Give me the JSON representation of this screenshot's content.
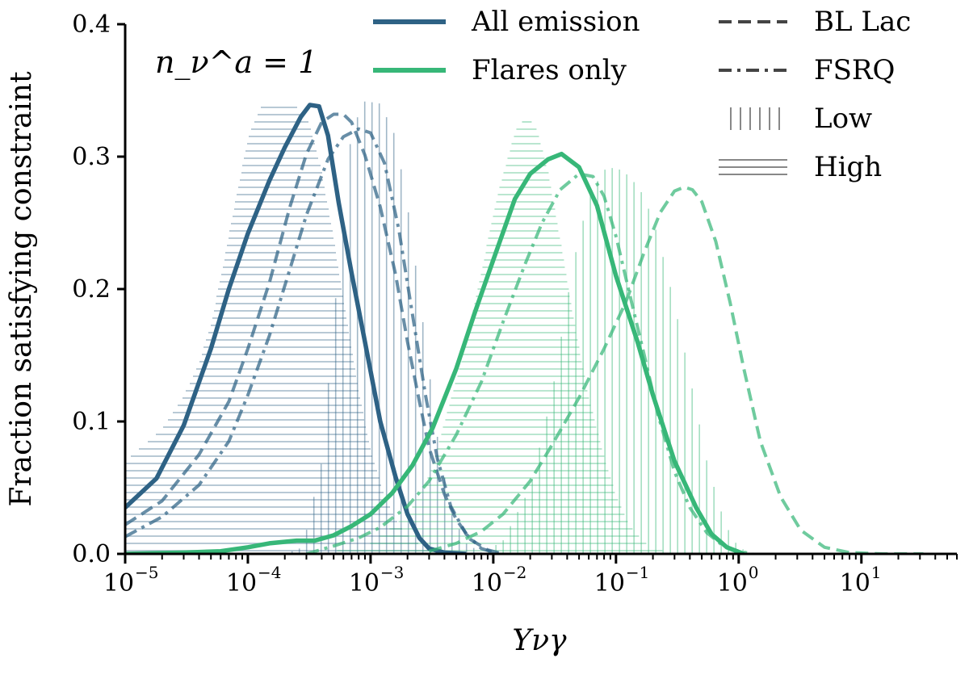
{
  "chart_data": {
    "type": "line",
    "x_scale": "log",
    "xlim": [
      1e-05,
      60
    ],
    "ylim": [
      0.0,
      0.4
    ],
    "xlabel": "Yνγ",
    "ylabel": "Fraction satisfying constraint",
    "annotation": "n_ν^a = 1",
    "x_ticks": [
      {
        "base": "10",
        "exp": "−5",
        "value": 1e-05
      },
      {
        "base": "10",
        "exp": "−4",
        "value": 0.0001
      },
      {
        "base": "10",
        "exp": "−3",
        "value": 0.001
      },
      {
        "base": "10",
        "exp": "−2",
        "value": 0.01
      },
      {
        "base": "10",
        "exp": "−1",
        "value": 0.1
      },
      {
        "base": "10",
        "exp": "0",
        "value": 1
      },
      {
        "base": "10",
        "exp": "1",
        "value": 10
      }
    ],
    "y_ticks": [
      "0.0",
      "0.1",
      "0.2",
      "0.3",
      "0.4"
    ],
    "y_tick_values": [
      0.0,
      0.1,
      0.2,
      0.3,
      0.4
    ],
    "colors": {
      "all": "#2e6285",
      "flares": "#37b778"
    },
    "legend": {
      "col1": [
        {
          "label": "All emission",
          "style": "solid",
          "color": "#2e6285"
        },
        {
          "label": "Flares only",
          "style": "solid",
          "color": "#37b778"
        }
      ],
      "col2": [
        {
          "label": "BL Lac",
          "style": "dashed"
        },
        {
          "label": "FSRQ",
          "style": "dashdot"
        },
        {
          "label": "Low",
          "style": "vertical-hatch"
        },
        {
          "label": "High",
          "style": "horizontal-hatch"
        }
      ]
    },
    "series": [
      {
        "name": "All emission",
        "group": "all",
        "style": "solid",
        "x": [
          1e-05,
          1.8e-05,
          3e-05,
          5e-05,
          7e-05,
          0.0001,
          0.00015,
          0.0002,
          0.00027,
          0.00032,
          0.00038,
          0.00045,
          0.00055,
          0.0007,
          0.0009,
          0.0012,
          0.0016,
          0.002,
          0.0025,
          0.003,
          0.004,
          0.006
        ],
        "y": [
          0.035,
          0.057,
          0.097,
          0.155,
          0.2,
          0.242,
          0.282,
          0.307,
          0.33,
          0.339,
          0.338,
          0.316,
          0.265,
          0.212,
          0.16,
          0.1,
          0.058,
          0.03,
          0.012,
          0.004,
          0.001,
          0.0
        ]
      },
      {
        "name": "All emission BL Lac",
        "group": "all",
        "style": "dashed",
        "x": [
          1e-05,
          2e-05,
          4e-05,
          7e-05,
          0.0001,
          0.00015,
          0.00022,
          0.0003,
          0.0004,
          0.0005,
          0.0006,
          0.0007,
          0.0009,
          0.0012,
          0.0016,
          0.002,
          0.0025,
          0.003,
          0.004,
          0.005,
          0.0065,
          0.009,
          0.012
        ],
        "y": [
          0.022,
          0.04,
          0.075,
          0.115,
          0.155,
          0.205,
          0.262,
          0.302,
          0.326,
          0.332,
          0.332,
          0.326,
          0.301,
          0.262,
          0.211,
          0.16,
          0.115,
          0.08,
          0.045,
          0.026,
          0.011,
          0.003,
          0.0
        ]
      },
      {
        "name": "All emission FSRQ",
        "group": "all",
        "style": "dashdot",
        "x": [
          1e-05,
          2e-05,
          4e-05,
          7e-05,
          0.0001,
          0.00015,
          0.00022,
          0.0003,
          0.00045,
          0.0006,
          0.0008,
          0.001,
          0.0013,
          0.0017,
          0.0022,
          0.0028,
          0.0035,
          0.0045,
          0.006,
          0.008,
          0.011
        ],
        "y": [
          0.013,
          0.028,
          0.052,
          0.085,
          0.12,
          0.165,
          0.215,
          0.256,
          0.298,
          0.315,
          0.321,
          0.318,
          0.295,
          0.245,
          0.18,
          0.12,
          0.072,
          0.036,
          0.015,
          0.004,
          0.0
        ]
      },
      {
        "name": "Flares only",
        "group": "flares",
        "style": "solid",
        "x": [
          1e-05,
          3e-05,
          6e-05,
          0.0001,
          0.00015,
          0.00025,
          0.00035,
          0.0005,
          0.0007,
          0.001,
          0.0015,
          0.0022,
          0.0032,
          0.005,
          0.007,
          0.01,
          0.015,
          0.02,
          0.028,
          0.036,
          0.05,
          0.07,
          0.1,
          0.15,
          0.2,
          0.3,
          0.45,
          0.6,
          0.8,
          1.1
        ],
        "y": [
          0.0,
          0.001,
          0.002,
          0.005,
          0.008,
          0.01,
          0.01,
          0.014,
          0.021,
          0.03,
          0.046,
          0.067,
          0.095,
          0.14,
          0.181,
          0.222,
          0.268,
          0.287,
          0.298,
          0.302,
          0.292,
          0.263,
          0.21,
          0.16,
          0.12,
          0.07,
          0.035,
          0.015,
          0.005,
          0.0
        ]
      },
      {
        "name": "Flares only BL Lac",
        "group": "flares",
        "style": "dashed",
        "x": [
          0.003,
          0.005,
          0.008,
          0.012,
          0.02,
          0.03,
          0.05,
          0.08,
          0.12,
          0.17,
          0.23,
          0.3,
          0.36,
          0.42,
          0.5,
          0.65,
          0.85,
          1.1,
          1.5,
          2.2,
          3.2,
          5,
          8,
          15,
          32
        ],
        "y": [
          0.002,
          0.008,
          0.017,
          0.03,
          0.055,
          0.082,
          0.118,
          0.155,
          0.19,
          0.228,
          0.258,
          0.274,
          0.277,
          0.275,
          0.266,
          0.236,
          0.19,
          0.14,
          0.085,
          0.043,
          0.018,
          0.005,
          0.001,
          0.0,
          0.0
        ]
      },
      {
        "name": "Flares only FSRQ",
        "group": "flares",
        "style": "dashdot",
        "x": [
          0.0003,
          0.0005,
          0.0008,
          0.0012,
          0.002,
          0.003,
          0.005,
          0.008,
          0.012,
          0.018,
          0.025,
          0.035,
          0.05,
          0.065,
          0.08,
          0.1,
          0.13,
          0.17,
          0.22,
          0.3,
          0.4,
          0.55,
          0.75,
          1.0,
          1.3
        ],
        "y": [
          0.0,
          0.006,
          0.012,
          0.02,
          0.036,
          0.055,
          0.09,
          0.13,
          0.175,
          0.218,
          0.25,
          0.275,
          0.287,
          0.285,
          0.27,
          0.24,
          0.195,
          0.15,
          0.105,
          0.062,
          0.035,
          0.016,
          0.006,
          0.002,
          0.0
        ]
      }
    ],
    "hatch_bands": [
      {
        "name": "All emission Low",
        "group": "all",
        "hatch": "vertical",
        "x": [
          0.0002,
          0.00028,
          0.0004,
          0.00055,
          0.0007,
          0.0009,
          0.0012,
          0.0016,
          0.0021,
          0.0028,
          0.0036,
          0.0046,
          0.006,
          0.008,
          0.012
        ],
        "y": [
          0.0,
          0.005,
          0.07,
          0.22,
          0.32,
          0.342,
          0.34,
          0.315,
          0.25,
          0.16,
          0.08,
          0.03,
          0.008,
          0.001,
          0.0
        ]
      },
      {
        "name": "All emission High",
        "group": "all",
        "hatch": "horizontal",
        "x": [
          1e-05,
          2e-05,
          3e-05,
          4e-05,
          5e-05,
          6e-05,
          8e-05,
          0.0001,
          0.00013,
          0.00018,
          0.00025,
          0.00032,
          0.0004,
          0.0005,
          0.00065,
          0.0008,
          0.001,
          0.0013,
          0.0017,
          0.0022,
          0.003,
          0.004,
          0.006
        ],
        "y": [
          0.07,
          0.095,
          0.12,
          0.145,
          0.175,
          0.21,
          0.27,
          0.315,
          0.34,
          0.34,
          0.338,
          0.325,
          0.29,
          0.24,
          0.175,
          0.125,
          0.08,
          0.045,
          0.022,
          0.01,
          0.004,
          0.001,
          0.0
        ]
      },
      {
        "name": "Flares only Low",
        "group": "flares",
        "hatch": "vertical",
        "x": [
          0.008,
          0.012,
          0.02,
          0.03,
          0.045,
          0.06,
          0.08,
          0.1,
          0.13,
          0.17,
          0.22,
          0.28,
          0.35,
          0.45,
          0.55,
          0.7,
          0.85,
          1.0,
          1.3
        ],
        "y": [
          0.0,
          0.01,
          0.05,
          0.12,
          0.22,
          0.27,
          0.29,
          0.292,
          0.285,
          0.27,
          0.24,
          0.2,
          0.16,
          0.11,
          0.07,
          0.035,
          0.015,
          0.005,
          0.0
        ]
      },
      {
        "name": "Flares only High",
        "group": "flares",
        "hatch": "horizontal",
        "x": [
          0.0004,
          0.001,
          0.002,
          0.003,
          0.004,
          0.006,
          0.008,
          0.011,
          0.015,
          0.019,
          0.023,
          0.028,
          0.035,
          0.045,
          0.06,
          0.08,
          0.1,
          0.13,
          0.17,
          0.22,
          0.3,
          0.4
        ],
        "y": [
          0.0,
          0.008,
          0.03,
          0.06,
          0.1,
          0.16,
          0.215,
          0.275,
          0.32,
          0.332,
          0.32,
          0.29,
          0.24,
          0.18,
          0.12,
          0.075,
          0.045,
          0.022,
          0.009,
          0.003,
          0.001,
          0.0
        ]
      }
    ]
  }
}
